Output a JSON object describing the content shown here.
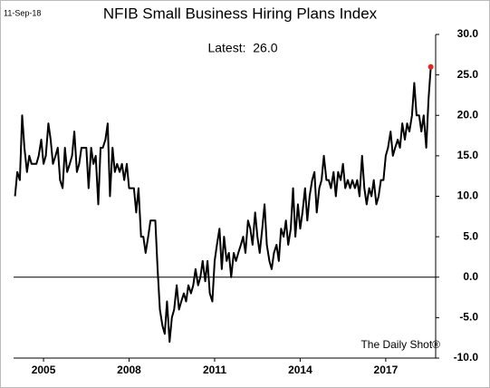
{
  "chart_data": {
    "type": "line",
    "title": "NFIB Small Business Hiring Plans Index",
    "annotation": "Latest:  26.0",
    "date_label": "11-Sep-18",
    "source": "The Daily Shot®",
    "x": [
      2004,
      2004.08,
      2004.17,
      2004.25,
      2004.33,
      2004.42,
      2004.5,
      2004.58,
      2004.67,
      2004.75,
      2004.83,
      2004.92,
      2005,
      2005.08,
      2005.17,
      2005.25,
      2005.33,
      2005.42,
      2005.5,
      2005.58,
      2005.67,
      2005.75,
      2005.83,
      2005.92,
      2006,
      2006.08,
      2006.17,
      2006.25,
      2006.33,
      2006.42,
      2006.5,
      2006.58,
      2006.67,
      2006.75,
      2006.83,
      2006.92,
      2007,
      2007.08,
      2007.17,
      2007.25,
      2007.33,
      2007.42,
      2007.5,
      2007.58,
      2007.67,
      2007.75,
      2007.83,
      2007.92,
      2008,
      2008.08,
      2008.17,
      2008.25,
      2008.33,
      2008.42,
      2008.5,
      2008.58,
      2008.67,
      2008.75,
      2008.83,
      2008.92,
      2009,
      2009.08,
      2009.17,
      2009.25,
      2009.33,
      2009.42,
      2009.5,
      2009.58,
      2009.67,
      2009.75,
      2009.83,
      2009.92,
      2010,
      2010.08,
      2010.17,
      2010.25,
      2010.33,
      2010.42,
      2010.5,
      2010.58,
      2010.67,
      2010.75,
      2010.83,
      2010.92,
      2011,
      2011.08,
      2011.17,
      2011.25,
      2011.33,
      2011.42,
      2011.5,
      2011.58,
      2011.67,
      2011.75,
      2011.83,
      2011.92,
      2012,
      2012.08,
      2012.17,
      2012.25,
      2012.33,
      2012.42,
      2012.5,
      2012.58,
      2012.67,
      2012.75,
      2012.83,
      2012.92,
      2013,
      2013.08,
      2013.17,
      2013.25,
      2013.33,
      2013.42,
      2013.5,
      2013.58,
      2013.67,
      2013.75,
      2013.83,
      2013.92,
      2014,
      2014.08,
      2014.17,
      2014.25,
      2014.33,
      2014.42,
      2014.5,
      2014.58,
      2014.67,
      2014.75,
      2014.83,
      2014.92,
      2015,
      2015.08,
      2015.17,
      2015.25,
      2015.33,
      2015.42,
      2015.5,
      2015.58,
      2015.67,
      2015.75,
      2015.83,
      2015.92,
      2016,
      2016.08,
      2016.17,
      2016.25,
      2016.33,
      2016.42,
      2016.5,
      2016.58,
      2016.67,
      2016.75,
      2016.83,
      2016.92,
      2017,
      2017.08,
      2017.17,
      2017.25,
      2017.33,
      2017.42,
      2017.5,
      2017.58,
      2017.67,
      2017.75,
      2017.83,
      2017.92,
      2018,
      2018.08,
      2018.17,
      2018.25,
      2018.33,
      2018.42,
      2018.5,
      2018.58
    ],
    "series": [
      {
        "color": "#000000",
        "values": [
          10,
          13,
          12,
          20,
          16,
          13,
          15,
          14,
          14,
          14,
          15,
          17,
          14,
          15,
          19,
          17,
          14,
          15,
          16,
          12,
          11,
          16,
          13,
          14,
          15,
          18,
          13,
          14,
          16,
          16,
          16,
          11,
          16,
          14,
          15,
          9,
          16,
          16,
          17,
          19,
          10,
          16,
          13,
          14,
          13,
          14,
          12,
          14,
          11,
          11,
          11,
          8,
          11,
          5,
          5,
          3,
          5,
          7,
          7,
          7,
          1,
          -4,
          -6,
          -7,
          -3,
          -8,
          -5,
          -4,
          -1,
          -4,
          -3,
          -2,
          -3,
          -1,
          -2,
          -1,
          1,
          -1,
          0,
          2,
          -0.5,
          2,
          -2,
          -3,
          2,
          4,
          6,
          1,
          5,
          2,
          3,
          0,
          3,
          2,
          3,
          4,
          5,
          3,
          7,
          6,
          4,
          8,
          5,
          3,
          6,
          9,
          4,
          2,
          1,
          3,
          4,
          2,
          6,
          5,
          7,
          4,
          6,
          11,
          5,
          9,
          6,
          8,
          11,
          7,
          10,
          12,
          13,
          8,
          11,
          12,
          15,
          12,
          12,
          11,
          13,
          10,
          13,
          12,
          14,
          11,
          12,
          11,
          12,
          11,
          12,
          10,
          15,
          11,
          9,
          11,
          10,
          12,
          9,
          10,
          12,
          12,
          15,
          16,
          18,
          15,
          16,
          17,
          16,
          19,
          17,
          19,
          18,
          20,
          24,
          20,
          20,
          18,
          20,
          16,
          22,
          26
        ]
      }
    ],
    "latest_color": "#e8231c",
    "xlim": [
      2003.95,
      2018.75
    ],
    "xticks": [
      2005,
      2008,
      2011,
      2014,
      2017
    ],
    "ylim": [
      -10,
      30
    ],
    "yticks": [
      {
        "value": -10,
        "label": "-10.0"
      },
      {
        "value": -5,
        "label": "-5.0"
      },
      {
        "value": 0,
        "label": "0.0"
      },
      {
        "value": 5,
        "label": "5.0"
      },
      {
        "value": 10,
        "label": "10.0"
      },
      {
        "value": 15,
        "label": "15.0"
      },
      {
        "value": 20,
        "label": "20.0"
      },
      {
        "value": 25,
        "label": "25.0"
      },
      {
        "value": 30,
        "label": "30.0"
      }
    ]
  }
}
